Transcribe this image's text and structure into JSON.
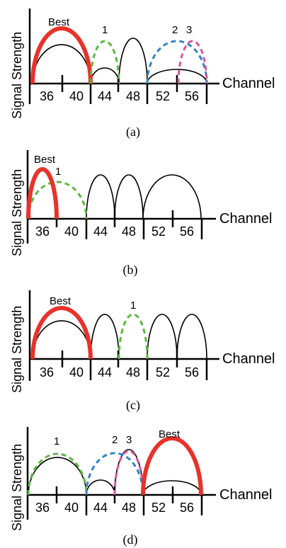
{
  "axis_labels": {
    "y": "Signal Strength",
    "x": "Channel"
  },
  "channels": [
    "36",
    "40",
    "44",
    "48",
    "52",
    "56"
  ],
  "colors": {
    "best": "#e8322a",
    "green": "#5cb840",
    "blue": "#2f84c6",
    "pink": "#e0529c",
    "black": "#000000"
  },
  "panels": [
    {
      "caption": "(a)",
      "markers": {
        "best": "Best",
        "one": "1",
        "two": "2",
        "three": "3"
      }
    },
    {
      "caption": "(b)",
      "markers": {
        "best": "Best",
        "one": "1"
      }
    },
    {
      "caption": "(c)",
      "markers": {
        "best": "Best",
        "one": "1"
      }
    },
    {
      "caption": "(d)",
      "markers": {
        "best": "Best",
        "one": "1",
        "two": "2",
        "three": "3"
      }
    }
  ]
}
